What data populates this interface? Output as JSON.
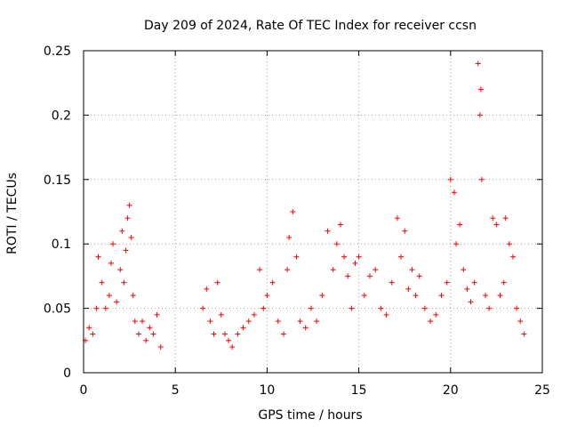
{
  "chart_data": {
    "type": "scatter",
    "title": "Day 209 of 2024, Rate Of TEC Index for receiver ccsn",
    "xlabel": "GPS time / hours",
    "ylabel": "ROTI / TECUs",
    "xlim": [
      0,
      25
    ],
    "ylim": [
      0,
      0.25
    ],
    "xticks": [
      0,
      5,
      10,
      15,
      20,
      25
    ],
    "yticks": [
      0,
      0.05,
      0.1,
      0.15,
      0.2,
      0.25
    ],
    "xtick_labels": [
      "0",
      "5",
      "10",
      "15",
      "20",
      "25"
    ],
    "ytick_labels": [
      "0",
      "0.05",
      "0.1",
      "0.15",
      "0.2",
      "0.25"
    ],
    "grid": true,
    "legend": "none",
    "marker": "+",
    "color": "#ff0000",
    "series": [
      {
        "x": [
          0.1,
          0.3,
          0.5,
          0.7,
          0.8,
          1.0,
          1.2,
          1.4,
          1.5,
          1.6,
          1.8,
          2.0,
          2.1,
          2.2,
          2.3,
          2.4,
          2.5,
          2.6,
          2.7,
          2.8,
          3.0,
          3.2,
          3.4,
          3.6,
          3.8,
          4.0,
          4.2,
          6.5,
          6.7,
          6.9,
          7.1,
          7.3,
          7.5,
          7.7,
          7.9,
          8.1,
          8.4,
          8.7,
          9.0,
          9.3,
          9.6,
          9.8,
          10.0,
          10.3,
          10.6,
          10.9,
          11.1,
          11.2,
          11.4,
          11.6,
          11.8,
          12.1,
          12.4,
          12.7,
          13.0,
          13.3,
          13.6,
          13.8,
          14.0,
          14.2,
          14.4,
          14.6,
          14.8,
          15.0,
          15.3,
          15.6,
          15.9,
          16.2,
          16.5,
          16.8,
          17.1,
          17.3,
          17.5,
          17.7,
          17.9,
          18.1,
          18.3,
          18.6,
          18.9,
          19.2,
          19.5,
          19.8,
          20.0,
          20.2,
          20.3,
          20.5,
          20.7,
          20.9,
          21.1,
          21.3,
          21.5,
          21.6,
          21.65,
          21.7,
          21.9,
          22.1,
          22.3,
          22.5,
          22.7,
          22.9,
          23.0,
          23.2,
          23.4,
          23.6,
          23.8,
          24.0
        ],
        "y": [
          0.025,
          0.035,
          0.03,
          0.05,
          0.09,
          0.07,
          0.05,
          0.06,
          0.085,
          0.1,
          0.055,
          0.08,
          0.11,
          0.07,
          0.095,
          0.12,
          0.13,
          0.105,
          0.06,
          0.04,
          0.03,
          0.04,
          0.025,
          0.035,
          0.03,
          0.045,
          0.02,
          0.05,
          0.065,
          0.04,
          0.03,
          0.07,
          0.045,
          0.03,
          0.025,
          0.02,
          0.03,
          0.035,
          0.04,
          0.045,
          0.08,
          0.05,
          0.06,
          0.07,
          0.04,
          0.03,
          0.08,
          0.105,
          0.125,
          0.09,
          0.04,
          0.035,
          0.05,
          0.04,
          0.06,
          0.11,
          0.08,
          0.1,
          0.115,
          0.09,
          0.075,
          0.05,
          0.085,
          0.09,
          0.06,
          0.075,
          0.08,
          0.05,
          0.045,
          0.07,
          0.12,
          0.09,
          0.11,
          0.065,
          0.08,
          0.06,
          0.075,
          0.05,
          0.04,
          0.045,
          0.06,
          0.07,
          0.15,
          0.14,
          0.1,
          0.115,
          0.08,
          0.065,
          0.055,
          0.07,
          0.24,
          0.2,
          0.22,
          0.15,
          0.06,
          0.05,
          0.12,
          0.115,
          0.06,
          0.07,
          0.12,
          0.1,
          0.09,
          0.05,
          0.04,
          0.03
        ]
      }
    ]
  }
}
